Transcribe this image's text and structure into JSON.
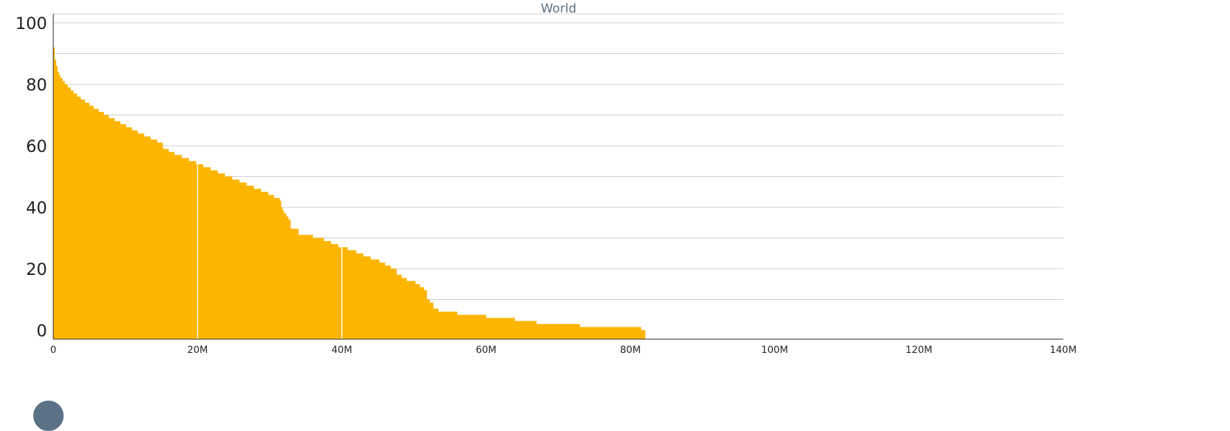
{
  "chart_data": {
    "type": "area",
    "title": "World",
    "xlabel": "",
    "ylabel": "",
    "xlim": [
      0,
      140000000
    ],
    "ylim": [
      0,
      100
    ],
    "x_ticks": [
      {
        "value": 0,
        "label": "0"
      },
      {
        "value": 20000000,
        "label": "20M"
      },
      {
        "value": 40000000,
        "label": "40M"
      },
      {
        "value": 60000000,
        "label": "60M"
      },
      {
        "value": 80000000,
        "label": "80M"
      },
      {
        "value": 100000000,
        "label": "100M"
      },
      {
        "value": 120000000,
        "label": "120M"
      },
      {
        "value": 140000000,
        "label": "140M"
      }
    ],
    "y_ticks": [
      {
        "value": 0,
        "label": "0"
      },
      {
        "value": 20,
        "label": "20"
      },
      {
        "value": 40,
        "label": "40"
      },
      {
        "value": 60,
        "label": "60"
      },
      {
        "value": 80,
        "label": "80"
      },
      {
        "value": 100,
        "label": "100"
      }
    ],
    "grid": true,
    "color": "#FDB500",
    "x_minor_gridlines": [
      20000000,
      40000000
    ],
    "series": [
      {
        "x": [
          0,
          200000,
          400000,
          600000,
          800000,
          1000000,
          1300000,
          1600000,
          2000000,
          2400000,
          2800000,
          3300000,
          3800000,
          4400000,
          5000000,
          5600000,
          6300000,
          7000000,
          7700000,
          8500000,
          9300000,
          10100000,
          10900000,
          11700000,
          12600000,
          13500000,
          14400000,
          15200000,
          16000000,
          16800000,
          17800000,
          18800000,
          19800000,
          20800000,
          21800000,
          22800000,
          23800000,
          24800000,
          25800000,
          26800000,
          27800000,
          28800000,
          29800000,
          30600000,
          31400000,
          31600000,
          31800000,
          32000000,
          32300000,
          32600000,
          32900000,
          34000000,
          36000000,
          37500000,
          38500000,
          39500000,
          40800000,
          42000000,
          43000000,
          44000000,
          45200000,
          46000000,
          46800000,
          47600000,
          48300000,
          49000000,
          50200000,
          50800000,
          51400000,
          51800000,
          52200000,
          52700000,
          53400000,
          56000000,
          60000000,
          64000000,
          67000000,
          73000000,
          80000000,
          81500000
        ],
        "y": [
          92,
          88,
          86,
          84,
          83,
          82,
          81,
          80,
          79,
          78,
          77,
          76,
          75,
          74,
          73,
          72,
          71,
          70,
          69,
          68,
          67,
          66,
          65,
          64,
          63,
          62,
          61,
          59,
          58,
          57,
          56,
          55,
          54,
          53,
          52,
          51,
          50,
          49,
          48,
          47,
          46,
          45,
          44,
          43,
          42,
          40,
          39,
          38,
          37,
          36,
          33,
          31,
          30,
          29,
          28,
          27,
          26,
          25,
          24,
          23,
          22,
          21,
          20,
          18,
          17,
          16,
          15,
          14,
          13,
          10,
          9,
          7,
          6,
          5,
          4,
          3,
          2,
          1,
          1,
          0
        ]
      }
    ]
  },
  "decor": {
    "badge": "circle-badge"
  }
}
